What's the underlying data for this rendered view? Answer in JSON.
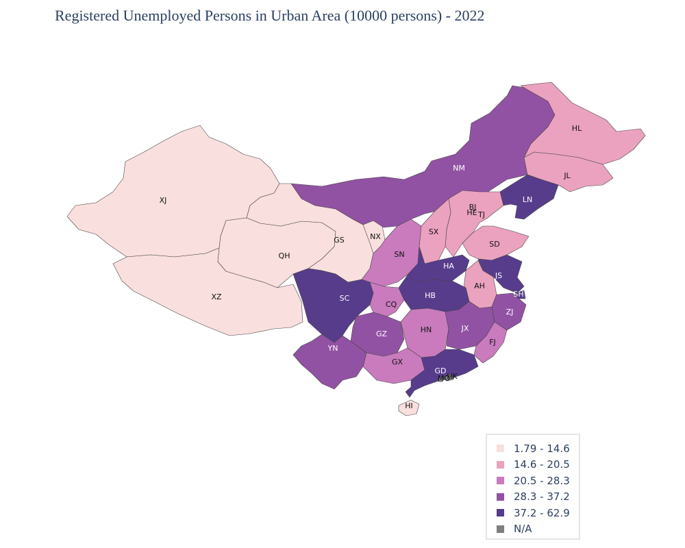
{
  "title": "Registered Unemployed Persons in Urban Area (10000 persons) - 2022",
  "legend": [
    {
      "label": "1.79 - 14.6",
      "color": "#f9dfde"
    },
    {
      "label": "14.6 - 20.5",
      "color": "#eba2bf"
    },
    {
      "label": "20.5 - 28.3",
      "color": "#c97bbd"
    },
    {
      "label": "28.3 - 37.2",
      "color": "#9252a3"
    },
    {
      "label": "37.2 - 62.9",
      "color": "#573c8c"
    },
    {
      "label": "N/A",
      "color": "#7f7f7f"
    }
  ],
  "regions": [
    {
      "code": "XJ",
      "bin": 0
    },
    {
      "code": "XZ",
      "bin": 0
    },
    {
      "code": "QH",
      "bin": 0
    },
    {
      "code": "GS",
      "bin": 0
    },
    {
      "code": "NX",
      "bin": 0
    },
    {
      "code": "NM",
      "bin": 3
    },
    {
      "code": "HL",
      "bin": 1
    },
    {
      "code": "JL",
      "bin": 1
    },
    {
      "code": "LN",
      "bin": 4
    },
    {
      "code": "BJ",
      "bin": 2
    },
    {
      "code": "TJ",
      "bin": 2
    },
    {
      "code": "HE",
      "bin": 1
    },
    {
      "code": "SX",
      "bin": 1
    },
    {
      "code": "SD",
      "bin": 1
    },
    {
      "code": "SN",
      "bin": 2
    },
    {
      "code": "HA",
      "bin": 4
    },
    {
      "code": "JS",
      "bin": 4
    },
    {
      "code": "AH",
      "bin": 1
    },
    {
      "code": "SH",
      "bin": 4
    },
    {
      "code": "SC",
      "bin": 4
    },
    {
      "code": "CQ",
      "bin": 2
    },
    {
      "code": "HB",
      "bin": 4
    },
    {
      "code": "ZJ",
      "bin": 3
    },
    {
      "code": "GZ",
      "bin": 3
    },
    {
      "code": "HN",
      "bin": 2
    },
    {
      "code": "JX",
      "bin": 3
    },
    {
      "code": "FJ",
      "bin": 2
    },
    {
      "code": "YN",
      "bin": 3
    },
    {
      "code": "GX",
      "bin": 2
    },
    {
      "code": "GD",
      "bin": 4
    },
    {
      "code": "HK",
      "bin": 5
    },
    {
      "code": "MO",
      "bin": 5
    },
    {
      "code": "HI",
      "bin": 0
    }
  ]
}
